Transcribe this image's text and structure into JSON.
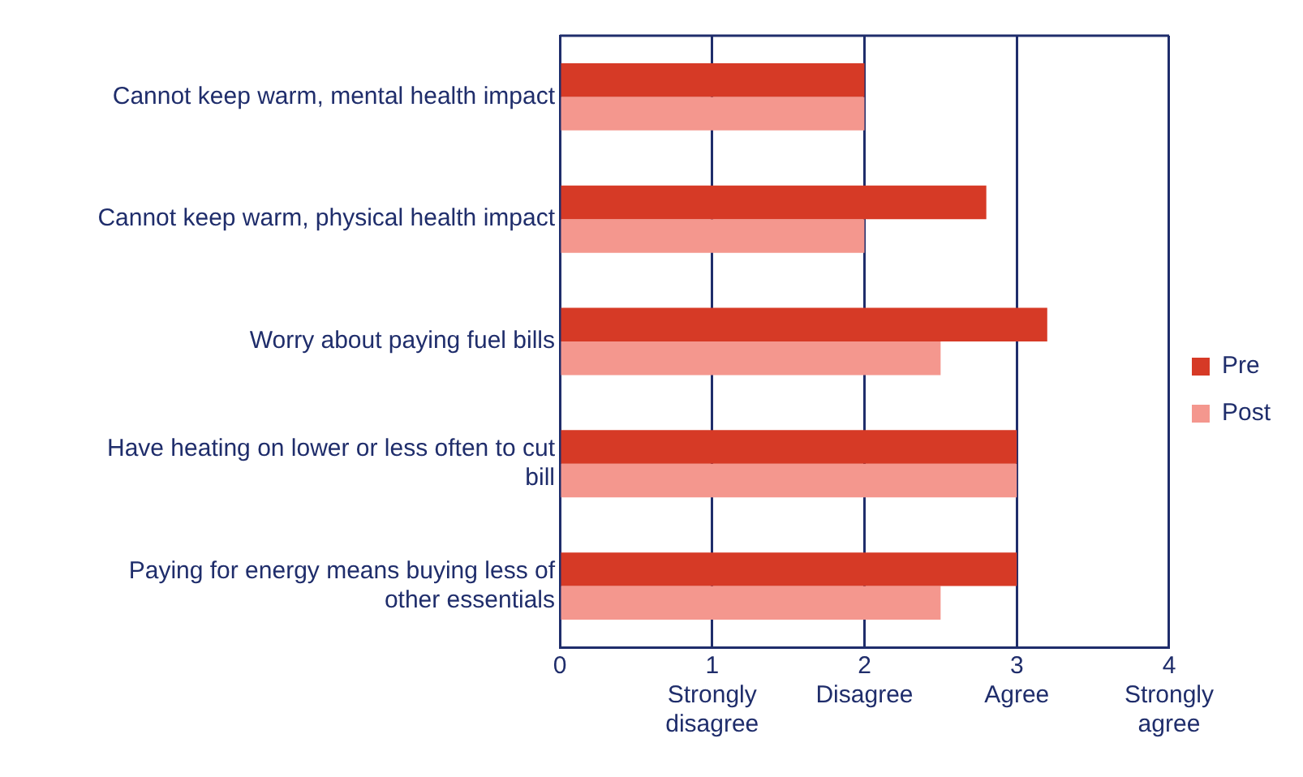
{
  "chart_data": {
    "type": "bar",
    "orientation": "horizontal",
    "categories": [
      "Cannot keep warm, mental health impact",
      "Cannot keep warm, physical health impact",
      "Worry about paying fuel bills",
      "Have heating on lower or less often to cut bill",
      "Paying for energy means buying less of other essentials"
    ],
    "series": [
      {
        "name": "Pre",
        "color": "#d63a26",
        "values": [
          2,
          2.8,
          3.2,
          3,
          3
        ]
      },
      {
        "name": "Post",
        "color": "#f4978e",
        "values": [
          2,
          2,
          2.5,
          3,
          2.5
        ]
      }
    ],
    "xlim": [
      0,
      4
    ],
    "xticks": [
      0,
      {
        "value": 1,
        "label": "1\nStrongly\ndisagree"
      },
      {
        "value": 2,
        "label": "2\nDisagree"
      },
      {
        "value": 3,
        "label": "3\nAgree"
      },
      {
        "value": 4,
        "label": "4\nStrongly\nagree"
      }
    ],
    "grid": "x",
    "legend": "right"
  }
}
